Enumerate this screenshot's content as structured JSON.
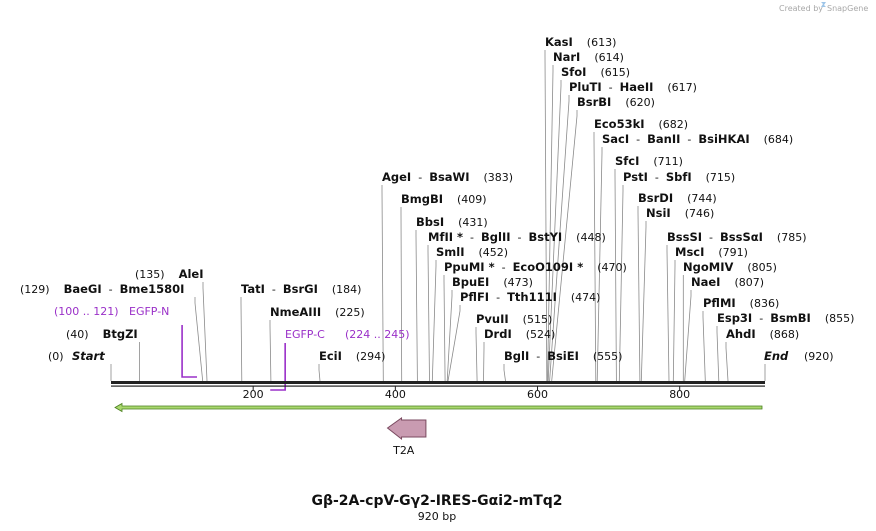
{
  "brand": {
    "created_by": "Created by",
    "name": "SnapGene"
  },
  "title": "Gβ-2A-cpV-Gγ2-IRES-Gαi2-mTq2",
  "length_label": "920 bp",
  "length": 920,
  "ticks": [
    200,
    400,
    600,
    800
  ],
  "ends": [
    {
      "name": "Start",
      "pos_label": "(0)",
      "pos": 0
    },
    {
      "name": "End",
      "pos_label": "(920)",
      "pos": 920
    }
  ],
  "sites": [
    {
      "names": [
        "KasI"
      ],
      "pos": 613,
      "pos_label": "(613)"
    },
    {
      "names": [
        "NarI"
      ],
      "pos": 614,
      "pos_label": "(614)"
    },
    {
      "names": [
        "SfoI"
      ],
      "pos": 615,
      "pos_label": "(615)"
    },
    {
      "names": [
        "PluTI",
        "HaeII"
      ],
      "pos": 617,
      "pos_label": "(617)"
    },
    {
      "names": [
        "BsrBI"
      ],
      "pos": 620,
      "pos_label": "(620)"
    },
    {
      "names": [
        "Eco53kI"
      ],
      "pos": 682,
      "pos_label": "(682)"
    },
    {
      "names": [
        "SacI",
        "BanII",
        "BsiHKAI"
      ],
      "pos": 684,
      "pos_label": "(684)"
    },
    {
      "names": [
        "SfcI"
      ],
      "pos": 711,
      "pos_label": "(711)"
    },
    {
      "names": [
        "PstI",
        "SbfI"
      ],
      "pos": 715,
      "pos_label": "(715)"
    },
    {
      "names": [
        "AgeI",
        "BsaWI"
      ],
      "pos": 383,
      "pos_label": "(383)"
    },
    {
      "names": [
        "BsrDI"
      ],
      "pos": 744,
      "pos_label": "(744)"
    },
    {
      "names": [
        "BmgBI"
      ],
      "pos": 409,
      "pos_label": "(409)"
    },
    {
      "names": [
        "NsiI"
      ],
      "pos": 746,
      "pos_label": "(746)"
    },
    {
      "names": [
        "BbsI"
      ],
      "pos": 431,
      "pos_label": "(431)"
    },
    {
      "names": [
        "MfII *",
        "BglII",
        "BstYI"
      ],
      "pos": 448,
      "pos_label": "(448)"
    },
    {
      "names": [
        "BssSI",
        "BssSαI"
      ],
      "pos": 785,
      "pos_label": "(785)"
    },
    {
      "names": [
        "SmlI"
      ],
      "pos": 452,
      "pos_label": "(452)"
    },
    {
      "names": [
        "MscI"
      ],
      "pos": 791,
      "pos_label": "(791)"
    },
    {
      "names": [
        "PpuMI *",
        "EcoO109I *"
      ],
      "pos": 470,
      "pos_label": "(470)"
    },
    {
      "names": [
        "AleI"
      ],
      "pos": 135,
      "pos_label": "(135)"
    },
    {
      "names": [
        "NgoMIV"
      ],
      "pos": 805,
      "pos_label": "(805)"
    },
    {
      "names": [
        "BpuEI"
      ],
      "pos": 473,
      "pos_label": "(473)"
    },
    {
      "names": [
        "NaeI"
      ],
      "pos": 807,
      "pos_label": "(807)"
    },
    {
      "names": [
        "BaeGI",
        "Bme1580I"
      ],
      "pos": 129,
      "pos_label": "(129)"
    },
    {
      "names": [
        "TatI",
        "BsrGI"
      ],
      "pos": 184,
      "pos_label": "(184)"
    },
    {
      "names": [
        "PflFI",
        "Tth111I"
      ],
      "pos": 474,
      "pos_label": "(474)"
    },
    {
      "names": [
        "PflMI"
      ],
      "pos": 836,
      "pos_label": "(836)"
    },
    {
      "names": [
        "NmeAIII"
      ],
      "pos": 225,
      "pos_label": "(225)"
    },
    {
      "names": [
        "PvuII"
      ],
      "pos": 515,
      "pos_label": "(515)"
    },
    {
      "names": [
        "Esp3I",
        "BsmBI"
      ],
      "pos": 855,
      "pos_label": "(855)"
    },
    {
      "names": [
        "BtgZI"
      ],
      "pos": 40,
      "pos_label": "(40)"
    },
    {
      "names": [
        "DrdI"
      ],
      "pos": 524,
      "pos_label": "(524)"
    },
    {
      "names": [
        "AhdI"
      ],
      "pos": 868,
      "pos_label": "(868)"
    },
    {
      "names": [
        "EciI"
      ],
      "pos": 294,
      "pos_label": "(294)"
    },
    {
      "names": [
        "BglI",
        "BsiEI"
      ],
      "pos": 555,
      "pos_label": "(555)"
    }
  ],
  "primers": [
    {
      "name": "EGFP-N",
      "range_label": "(100 .. 121)",
      "start": 100,
      "end": 121,
      "direction": "forward"
    },
    {
      "name": "EGFP-C",
      "range_label": "(224 .. 245)",
      "start": 224,
      "end": 245,
      "direction": "reverse"
    }
  ],
  "features": [
    {
      "name": "T2A",
      "start": 389,
      "end": 443,
      "direction": "reverse",
      "color": "#c99bb1"
    }
  ],
  "orf": {
    "start": 0,
    "end": 920,
    "direction": "reverse",
    "color": "#a9d86e"
  },
  "colors": {
    "primer": "#9a30c8",
    "accent": "#97d55a",
    "brand": "#a8a8a8"
  }
}
